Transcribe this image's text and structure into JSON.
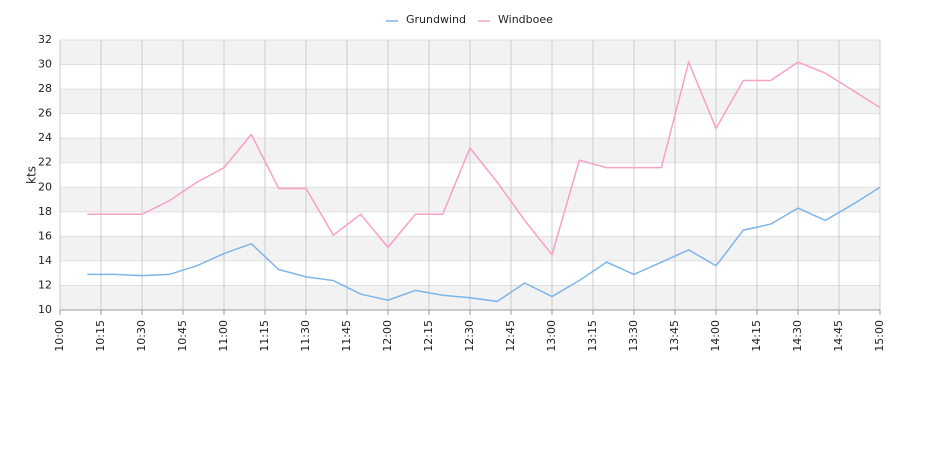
{
  "chart_data": {
    "type": "line",
    "ylabel": "kts",
    "x": [
      "10:10",
      "10:20",
      "10:30",
      "10:40",
      "10:50",
      "11:00",
      "11:10",
      "11:20",
      "11:30",
      "11:40",
      "11:50",
      "12:00",
      "12:10",
      "12:20",
      "12:30",
      "12:40",
      "12:50",
      "13:00",
      "13:10",
      "13:20",
      "13:30",
      "13:40",
      "13:50",
      "14:00",
      "14:10",
      "14:20",
      "14:30",
      "14:40",
      "14:50",
      "15:00"
    ],
    "series": [
      {
        "name": "Grundwind",
        "color": "#7cb5ec",
        "values": [
          12.9,
          12.9,
          12.8,
          12.9,
          13.6,
          14.6,
          15.4,
          13.3,
          12.7,
          12.4,
          11.3,
          10.8,
          11.6,
          11.2,
          11.0,
          10.7,
          12.2,
          11.1,
          12.4,
          13.9,
          12.9,
          13.9,
          14.9,
          13.6,
          16.5,
          17.0,
          18.3,
          17.3,
          18.6,
          20.0
        ]
      },
      {
        "name": "Windboee",
        "color": "#f7a1c4",
        "values": [
          17.8,
          17.8,
          17.8,
          18.9,
          20.4,
          21.6,
          24.3,
          19.9,
          19.9,
          16.1,
          17.8,
          15.1,
          17.8,
          17.8,
          23.2,
          20.4,
          17.3,
          14.5,
          22.2,
          21.6,
          21.6,
          21.6,
          30.2,
          24.8,
          28.7,
          28.7,
          30.2,
          29.3,
          27.9,
          26.5
        ]
      }
    ],
    "xlim": [
      "10:00",
      "15:00"
    ],
    "xticks": [
      "10:00",
      "10:15",
      "10:30",
      "10:45",
      "11:00",
      "11:15",
      "11:30",
      "11:45",
      "12:00",
      "12:15",
      "12:30",
      "12:45",
      "13:00",
      "13:15",
      "13:30",
      "13:45",
      "14:00",
      "14:15",
      "14:30",
      "14:45",
      "15:00"
    ],
    "ylim": [
      10,
      32
    ],
    "yticks": [
      10,
      12,
      14,
      16,
      18,
      20,
      22,
      24,
      26,
      28,
      30,
      32
    ],
    "grid": true,
    "legend": "top"
  }
}
